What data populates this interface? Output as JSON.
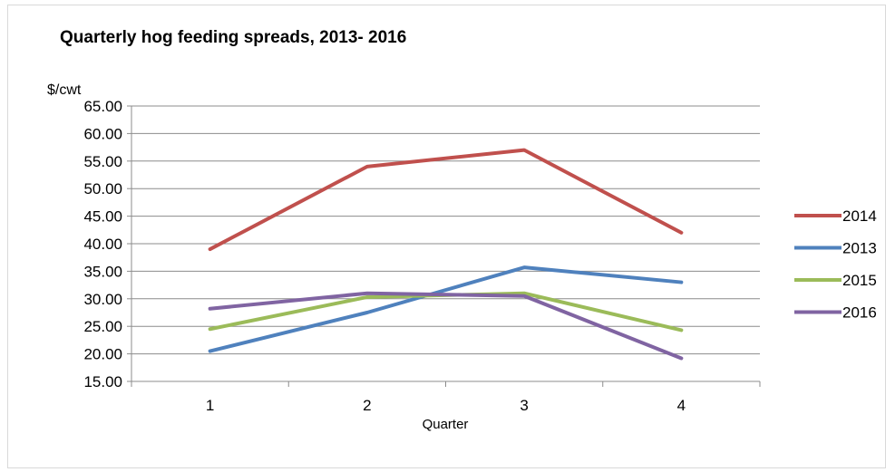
{
  "chart_data": {
    "type": "line",
    "title": "Quarterly hog feeding spreads, 2013- 2016",
    "ylabel": "$/cwt",
    "xlabel": "Quarter",
    "categories": [
      "1",
      "2",
      "3",
      "4"
    ],
    "ylim": [
      15,
      65
    ],
    "ytick_step": 5,
    "ytick_labels": [
      "15.00",
      "20.00",
      "25.00",
      "30.00",
      "35.00",
      "40.00",
      "45.00",
      "50.00",
      "55.00",
      "60.00",
      "65.00"
    ],
    "grid": true,
    "legend_position": "right",
    "series": [
      {
        "name": "2014",
        "color": "#c0504d",
        "values": [
          39.0,
          54.0,
          57.0,
          42.0
        ]
      },
      {
        "name": "2013",
        "color": "#4f81bd",
        "values": [
          20.5,
          27.5,
          35.7,
          33.0
        ]
      },
      {
        "name": "2015",
        "color": "#9bbb59",
        "values": [
          24.5,
          30.3,
          31.0,
          24.3
        ]
      },
      {
        "name": "2016",
        "color": "#8064a2",
        "values": [
          28.2,
          31.0,
          30.5,
          19.2
        ]
      }
    ]
  }
}
